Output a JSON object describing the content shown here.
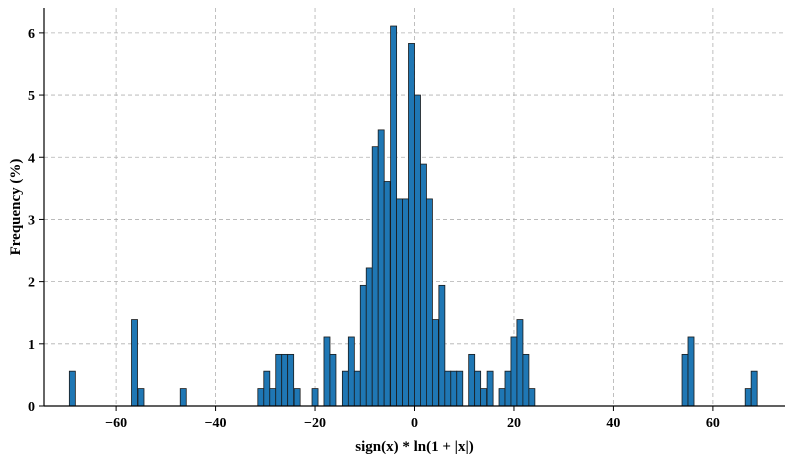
{
  "chart_data": {
    "type": "bar",
    "title": "",
    "xlabel": "sign(x) * ln(1 + |x|)",
    "ylabel": "Frequency (%)",
    "xlim": [
      -74.5,
      74.5
    ],
    "ylim": [
      0,
      6.4
    ],
    "xticks": [
      -60,
      -40,
      -20,
      0,
      20,
      40,
      60
    ],
    "xtick_labels": [
      "−60",
      "−40",
      "−20",
      "0",
      "20",
      "40",
      "60"
    ],
    "yticks": [
      0,
      1,
      2,
      3,
      4,
      5,
      6
    ],
    "ytick_labels": [
      "0",
      "1",
      "2",
      "3",
      "4",
      "5",
      "6"
    ],
    "bin_width": 1.21,
    "grid": true,
    "bar_color": "#1f77b4",
    "edge_color": "#1a1a1a",
    "bins": [
      {
        "x": -68.8,
        "value": 0.56
      },
      {
        "x": -56.3,
        "value": 1.39
      },
      {
        "x": -55.0,
        "value": 0.28
      },
      {
        "x": -46.5,
        "value": 0.28
      },
      {
        "x": -30.9,
        "value": 0.28
      },
      {
        "x": -29.7,
        "value": 0.56
      },
      {
        "x": -28.5,
        "value": 0.28
      },
      {
        "x": -27.3,
        "value": 0.83
      },
      {
        "x": -26.1,
        "value": 0.83
      },
      {
        "x": -24.9,
        "value": 0.83
      },
      {
        "x": -23.6,
        "value": 0.28
      },
      {
        "x": -20.0,
        "value": 0.28
      },
      {
        "x": -17.6,
        "value": 1.11
      },
      {
        "x": -16.4,
        "value": 0.83
      },
      {
        "x": -13.9,
        "value": 0.56
      },
      {
        "x": -12.7,
        "value": 1.11
      },
      {
        "x": -11.5,
        "value": 0.56
      },
      {
        "x": -10.3,
        "value": 1.94
      },
      {
        "x": -9.1,
        "value": 2.22
      },
      {
        "x": -7.9,
        "value": 4.17
      },
      {
        "x": -6.7,
        "value": 4.44
      },
      {
        "x": -5.5,
        "value": 3.61
      },
      {
        "x": -4.2,
        "value": 6.11
      },
      {
        "x": -3.0,
        "value": 3.33
      },
      {
        "x": -1.8,
        "value": 3.33
      },
      {
        "x": -0.6,
        "value": 5.83
      },
      {
        "x": 0.6,
        "value": 5.0
      },
      {
        "x": 1.8,
        "value": 3.89
      },
      {
        "x": 3.0,
        "value": 3.33
      },
      {
        "x": 4.2,
        "value": 1.39
      },
      {
        "x": 5.5,
        "value": 1.94
      },
      {
        "x": 6.7,
        "value": 0.56
      },
      {
        "x": 7.9,
        "value": 0.56
      },
      {
        "x": 9.1,
        "value": 0.56
      },
      {
        "x": 11.5,
        "value": 0.83
      },
      {
        "x": 12.7,
        "value": 0.56
      },
      {
        "x": 13.9,
        "value": 0.28
      },
      {
        "x": 15.2,
        "value": 0.56
      },
      {
        "x": 17.6,
        "value": 0.28
      },
      {
        "x": 18.8,
        "value": 0.56
      },
      {
        "x": 20.0,
        "value": 1.11
      },
      {
        "x": 21.2,
        "value": 1.39
      },
      {
        "x": 22.4,
        "value": 0.83
      },
      {
        "x": 23.6,
        "value": 0.28
      },
      {
        "x": 54.4,
        "value": 0.83
      },
      {
        "x": 55.6,
        "value": 1.11
      },
      {
        "x": 67.1,
        "value": 0.28
      },
      {
        "x": 68.3,
        "value": 0.56
      }
    ]
  }
}
